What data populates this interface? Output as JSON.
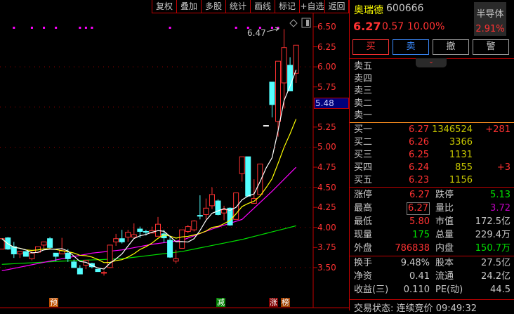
{
  "toolbar": {
    "items": [
      "复权",
      "叠加",
      "多股",
      "统计",
      "画线",
      "标记",
      "+自选",
      "返回"
    ]
  },
  "chart_data": {
    "type": "candlestick",
    "y_ticks": [
      "6.50",
      "6.25",
      "6.00",
      "5.75",
      "5.25",
      "5.00",
      "4.75",
      "4.50",
      "4.25",
      "4.00",
      "3.75",
      "3.50"
    ],
    "ylim": [
      3.5,
      6.5
    ],
    "crosshair_price": "5.48",
    "high_annotation": "6.47",
    "colors": {
      "up": "#ff3232",
      "down": "#54ffff",
      "ma5": "#ffffff",
      "ma10": "#ffff00",
      "ma20": "#ff00ff",
      "ma60": "#00e000",
      "grid": "#a00000",
      "dots": "#ff00ff"
    },
    "ohlc": [
      [
        3.73,
        3.86,
        3.73,
        3.86
      ],
      [
        3.87,
        3.88,
        3.72,
        3.73
      ],
      [
        3.76,
        3.82,
        3.62,
        3.67
      ],
      [
        3.67,
        3.7,
        3.62,
        3.7
      ],
      [
        3.7,
        3.7,
        3.64,
        3.64
      ],
      [
        3.61,
        3.72,
        3.59,
        3.68
      ],
      [
        3.69,
        3.76,
        3.68,
        3.76
      ],
      [
        3.78,
        3.82,
        3.74,
        3.82
      ],
      [
        3.86,
        3.88,
        3.74,
        3.75
      ],
      [
        3.68,
        3.68,
        3.58,
        3.64
      ],
      [
        3.67,
        3.87,
        3.67,
        3.71
      ],
      [
        3.68,
        3.73,
        3.57,
        3.61
      ],
      [
        3.57,
        3.6,
        3.5,
        3.5
      ],
      [
        3.49,
        3.53,
        3.42,
        3.42
      ],
      [
        3.53,
        3.59,
        3.48,
        3.59
      ],
      [
        3.55,
        3.56,
        3.49,
        3.51
      ],
      [
        3.48,
        3.48,
        3.45,
        3.45
      ],
      [
        3.43,
        3.46,
        3.4,
        3.44
      ],
      [
        3.5,
        3.78,
        3.49,
        3.78
      ],
      [
        3.82,
        3.92,
        3.77,
        3.86
      ],
      [
        3.86,
        3.97,
        3.8,
        3.82
      ],
      [
        3.88,
        3.97,
        3.82,
        3.94
      ],
      [
        3.88,
        4.05,
        3.88,
        3.91
      ],
      [
        3.98,
        4.01,
        3.87,
        3.95
      ],
      [
        3.95,
        3.97,
        3.9,
        3.94
      ],
      [
        3.93,
        4.01,
        3.93,
        3.96
      ],
      [
        3.89,
        4.13,
        3.89,
        4.04
      ],
      [
        3.92,
        3.97,
        3.81,
        3.87
      ],
      [
        3.84,
        3.88,
        3.62,
        3.63
      ],
      [
        3.58,
        3.72,
        3.55,
        3.61
      ],
      [
        3.74,
        3.97,
        3.74,
        3.97
      ],
      [
        3.95,
        4.03,
        3.93,
        4.01
      ],
      [
        3.97,
        4.09,
        3.95,
        4.08
      ],
      [
        4.15,
        4.4,
        4.1,
        4.14
      ],
      [
        4.16,
        4.36,
        4.1,
        4.24
      ],
      [
        4.27,
        4.5,
        4.23,
        4.41
      ],
      [
        4.33,
        4.35,
        4.15,
        4.16
      ],
      [
        4.18,
        4.27,
        4.09,
        4.22
      ],
      [
        4.24,
        4.25,
        4.02,
        4.03
      ],
      [
        4.1,
        4.43,
        4.1,
        4.43
      ],
      [
        4.67,
        4.88,
        4.57,
        4.88
      ],
      [
        4.88,
        4.88,
        4.39,
        4.39
      ],
      [
        4.3,
        4.6,
        4.3,
        4.36
      ],
      [
        4.41,
        4.79,
        4.41,
        4.79
      ],
      [
        5.27,
        5.27,
        5.27,
        5.27
      ],
      [
        5.81,
        5.81,
        5.37,
        5.53
      ],
      [
        5.32,
        6.07,
        5.13,
        6.07
      ],
      [
        5.8,
        6.47,
        5.48,
        6.24
      ],
      [
        6.02,
        6.12,
        5.7,
        5.7
      ],
      [
        5.92,
        6.27,
        5.8,
        6.27
      ]
    ],
    "ma20_keypoints": [
      [
        0,
        3.46
      ],
      [
        10,
        3.61
      ],
      [
        15,
        3.68
      ],
      [
        20,
        3.72
      ],
      [
        25,
        3.79
      ],
      [
        30,
        3.84
      ],
      [
        35,
        3.98
      ],
      [
        40,
        4.1
      ],
      [
        45,
        4.45
      ],
      [
        49,
        4.75
      ]
    ],
    "ma60_keypoints": [
      [
        0,
        3.54
      ],
      [
        10,
        3.58
      ],
      [
        20,
        3.61
      ],
      [
        30,
        3.7
      ],
      [
        40,
        3.85
      ],
      [
        49,
        4.02
      ]
    ],
    "top_dots_candle_index": [
      2,
      5,
      7,
      9,
      13,
      14,
      15,
      28,
      39,
      41,
      43,
      45,
      46
    ]
  },
  "markers": [
    {
      "text": "预",
      "color": "#c05000"
    },
    {
      "text": "减",
      "color": "#008000"
    },
    {
      "text": "涨",
      "color": "#800000"
    },
    {
      "text": "榜",
      "color": "#a04000"
    }
  ],
  "quote": {
    "name": "奥瑞德",
    "code": "600666",
    "price": "6.27",
    "change": "0.57",
    "change_pct": "10.00%",
    "sector": "半导体",
    "sector_pct": "2.91%",
    "buttons": [
      "买",
      "卖",
      "撤",
      "警"
    ],
    "expand_icon": "chevron-down",
    "sell": [
      "卖五",
      "卖四",
      "卖三",
      "卖二",
      "卖一"
    ],
    "buy": [
      {
        "label": "买一",
        "price": "6.27",
        "vol": "1346524",
        "delta": "+281"
      },
      {
        "label": "买二",
        "price": "6.26",
        "vol": "3366",
        "delta": ""
      },
      {
        "label": "买三",
        "price": "6.25",
        "vol": "1131",
        "delta": ""
      },
      {
        "label": "买四",
        "price": "6.24",
        "vol": "855",
        "delta": "+3"
      },
      {
        "label": "买五",
        "price": "6.23",
        "vol": "1156",
        "delta": ""
      }
    ],
    "stats": [
      {
        "l1": "涨停",
        "v1": "6.27",
        "c1": "#ff3232",
        "l2": "跌停",
        "v2": "5.13",
        "c2": "#00e000"
      },
      {
        "l1": "最高",
        "v1": "6.27",
        "c1": "#ff3232",
        "l2": "量比",
        "v2": "3.72",
        "c2": "#c000c0"
      },
      {
        "l1": "最低",
        "v1": "5.80",
        "c1": "#ff3232",
        "l2": "市值",
        "v2": "172.5亿",
        "c2": "#c8c8c8"
      },
      {
        "l1": "现量",
        "v1": "175",
        "c1": "#00e000",
        "l2": "总量",
        "v2": "229.4万",
        "c2": "#c8c8c8"
      },
      {
        "l1": "外盘",
        "v1": "786838",
        "c1": "#ff3232",
        "l2": "内盘",
        "v2": "150.7万",
        "c2": "#00e000"
      }
    ],
    "fund": [
      {
        "l1": "换手",
        "v1": "9.48%",
        "l2": "股本",
        "v2": "27.5亿"
      },
      {
        "l1": "净资",
        "v1": "0.41",
        "l2": "流通",
        "v2": "24.2亿"
      },
      {
        "l1": "收益(三)",
        "v1": "0.110",
        "l2": "PE(动)",
        "v2": "44.5"
      }
    ],
    "status_label": "交易状态:",
    "status_value": "连续竞价",
    "time": "09:49:32"
  }
}
